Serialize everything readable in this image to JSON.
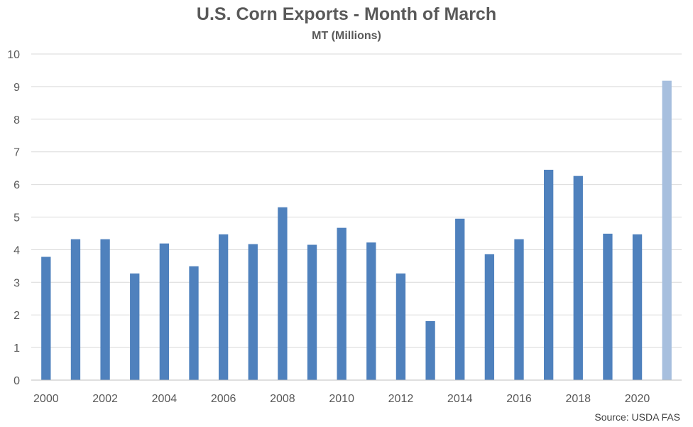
{
  "chart_data": {
    "type": "bar",
    "title": "U.S. Corn Exports - Month of March",
    "subtitle": "MT (Millions)",
    "source": "Source: USDA FAS",
    "categories": [
      "2000",
      "2001",
      "2002",
      "2003",
      "2004",
      "2005",
      "2006",
      "2007",
      "2008",
      "2009",
      "2010",
      "2011",
      "2012",
      "2013",
      "2014",
      "2015",
      "2016",
      "2017",
      "2018",
      "2019",
      "2020",
      "2021"
    ],
    "x_tick_labels": [
      "2000",
      "2002",
      "2004",
      "2006",
      "2008",
      "2010",
      "2012",
      "2014",
      "2016",
      "2018",
      "2020"
    ],
    "values": [
      3.78,
      4.32,
      4.32,
      3.27,
      4.19,
      3.49,
      4.47,
      4.17,
      5.3,
      4.15,
      4.67,
      4.22,
      3.27,
      1.81,
      4.95,
      3.86,
      4.32,
      6.45,
      6.26,
      4.49,
      4.47,
      9.18
    ],
    "ylim": [
      0,
      10
    ],
    "y_ticks": [
      0,
      1,
      2,
      3,
      4,
      5,
      6,
      7,
      8,
      9,
      10
    ],
    "grid": true,
    "legend": false,
    "colors": {
      "bar": "#4f81bd",
      "bar_highlight": "#a7bfde",
      "grid": "#d9d9d9",
      "text": "#595959"
    },
    "highlight_index": 21
  }
}
